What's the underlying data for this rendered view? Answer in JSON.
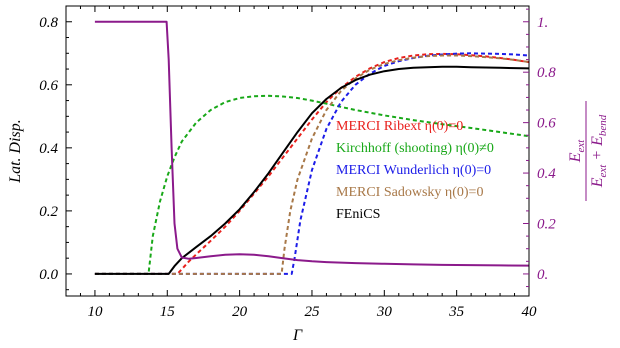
{
  "chart_data": {
    "type": "line",
    "xlabel": "Γ",
    "ylabel": "Lat. Disp.",
    "y2label_numerator": "E",
    "y2label_numerator_sub": "ext",
    "y2label_denominator_a": "E",
    "y2label_denominator_a_sub": "ext",
    "y2label_plus": " + ",
    "y2label_denominator_b": "E",
    "y2label_denominator_b_sub": "bend",
    "xlim": [
      8,
      40
    ],
    "ylim": [
      -0.07,
      0.85
    ],
    "y2lim": [
      -0.0875,
      1.0625
    ],
    "x_ticks": [
      10,
      15,
      20,
      25,
      30,
      35,
      40
    ],
    "x_tick_labels": [
      "10",
      "15",
      "20",
      "25",
      "30",
      "35",
      "40"
    ],
    "y_ticks": [
      0.0,
      0.2,
      0.4,
      0.6,
      0.8
    ],
    "y_tick_labels": [
      "0.0",
      "0.2",
      "0.4",
      "0.6",
      "0.8"
    ],
    "y2_ticks": [
      0,
      0.2,
      0.4,
      0.6,
      0.8,
      1.0
    ],
    "y2_tick_labels": [
      "0.",
      "0.2",
      "0.4",
      "0.6",
      "0.8",
      "1."
    ],
    "grid": false,
    "legend_position": "center-right",
    "colors": {
      "axis_left": "#000000",
      "axis_right": "#8b1a8b",
      "frame": "#000000"
    },
    "series": [
      {
        "name": "MERCI Ribext η(0)=0",
        "color": "#e8201c",
        "dashed": true,
        "axis": "left",
        "x": [
          10,
          15.7,
          16,
          16.5,
          17,
          18,
          19,
          20,
          21,
          22,
          23,
          24,
          25,
          26,
          27,
          28,
          29,
          30,
          31,
          32,
          33,
          34,
          35,
          36,
          37,
          38,
          39,
          40
        ],
        "y": [
          0,
          0,
          0.015,
          0.04,
          0.062,
          0.105,
          0.15,
          0.2,
          0.255,
          0.31,
          0.37,
          0.43,
          0.49,
          0.545,
          0.59,
          0.625,
          0.652,
          0.672,
          0.685,
          0.693,
          0.697,
          0.698,
          0.697,
          0.694,
          0.69,
          0.685,
          0.679,
          0.672
        ]
      },
      {
        "name": "Kirchhoff (shooting) η(0)≠0",
        "color": "#18a818",
        "dashed": true,
        "axis": "left",
        "x": [
          10,
          13.7,
          14,
          14.5,
          15,
          15.5,
          16,
          17,
          18,
          19,
          20,
          21,
          22,
          23,
          24,
          25,
          26,
          27,
          28,
          30,
          32,
          34,
          36,
          38,
          40
        ],
        "y": [
          0,
          0,
          0.12,
          0.23,
          0.31,
          0.37,
          0.42,
          0.48,
          0.52,
          0.545,
          0.558,
          0.564,
          0.565,
          0.563,
          0.558,
          0.55,
          0.54,
          0.53,
          0.52,
          0.503,
          0.488,
          0.475,
          0.463,
          0.45,
          0.437
        ]
      },
      {
        "name": "MERCI Wunderlich η(0)=0",
        "color": "#1c1ce8",
        "dashed": true,
        "axis": "left",
        "x": [
          10,
          23.6,
          23.8,
          24.2,
          25,
          26,
          27,
          28,
          29,
          30,
          31,
          32,
          33,
          34,
          35,
          36,
          37,
          38,
          39,
          40
        ],
        "y": [
          0,
          0,
          0.05,
          0.17,
          0.33,
          0.46,
          0.545,
          0.6,
          0.635,
          0.66,
          0.675,
          0.685,
          0.692,
          0.696,
          0.699,
          0.7,
          0.699,
          0.698,
          0.696,
          0.693
        ]
      },
      {
        "name": "MERCI Sadowsky η(0)=0",
        "color": "#a87848",
        "dashed": true,
        "axis": "left",
        "x": [
          10,
          22.9,
          23.1,
          23.5,
          24,
          25,
          26,
          27,
          28,
          29,
          30,
          31,
          32,
          33,
          34,
          35,
          36,
          37,
          38,
          39,
          40
        ],
        "y": [
          0,
          0,
          0.08,
          0.2,
          0.3,
          0.43,
          0.52,
          0.58,
          0.62,
          0.648,
          0.666,
          0.678,
          0.686,
          0.691,
          0.693,
          0.693,
          0.691,
          0.688,
          0.684,
          0.679,
          0.672
        ]
      },
      {
        "name": "FEniCS",
        "color": "#000000",
        "dashed": false,
        "axis": "left",
        "x": [
          10,
          15.1,
          15.5,
          16,
          17,
          18,
          19,
          20,
          21,
          22,
          23,
          24,
          25,
          26,
          27,
          28,
          29,
          30,
          31,
          32,
          33,
          34,
          35,
          36,
          37,
          38,
          39,
          40
        ],
        "y": [
          0,
          0,
          0.025,
          0.05,
          0.085,
          0.12,
          0.16,
          0.205,
          0.26,
          0.32,
          0.385,
          0.45,
          0.51,
          0.555,
          0.59,
          0.615,
          0.632,
          0.643,
          0.65,
          0.654,
          0.656,
          0.657,
          0.657,
          0.656,
          0.655,
          0.654,
          0.653,
          0.652
        ]
      },
      {
        "name": "",
        "color": "#8b1a8b",
        "dashed": false,
        "axis": "right",
        "x": [
          10,
          14.95,
          15.1,
          15.3,
          15.5,
          15.7,
          16,
          16.5,
          17,
          18,
          19,
          20,
          21,
          22,
          23,
          24,
          25,
          26,
          28,
          30,
          32,
          34,
          36,
          38,
          40
        ],
        "y": [
          1.0,
          1.0,
          0.85,
          0.5,
          0.2,
          0.1,
          0.065,
          0.06,
          0.063,
          0.07,
          0.076,
          0.078,
          0.076,
          0.07,
          0.062,
          0.055,
          0.05,
          0.047,
          0.043,
          0.04,
          0.038,
          0.036,
          0.035,
          0.034,
          0.033
        ]
      }
    ]
  }
}
